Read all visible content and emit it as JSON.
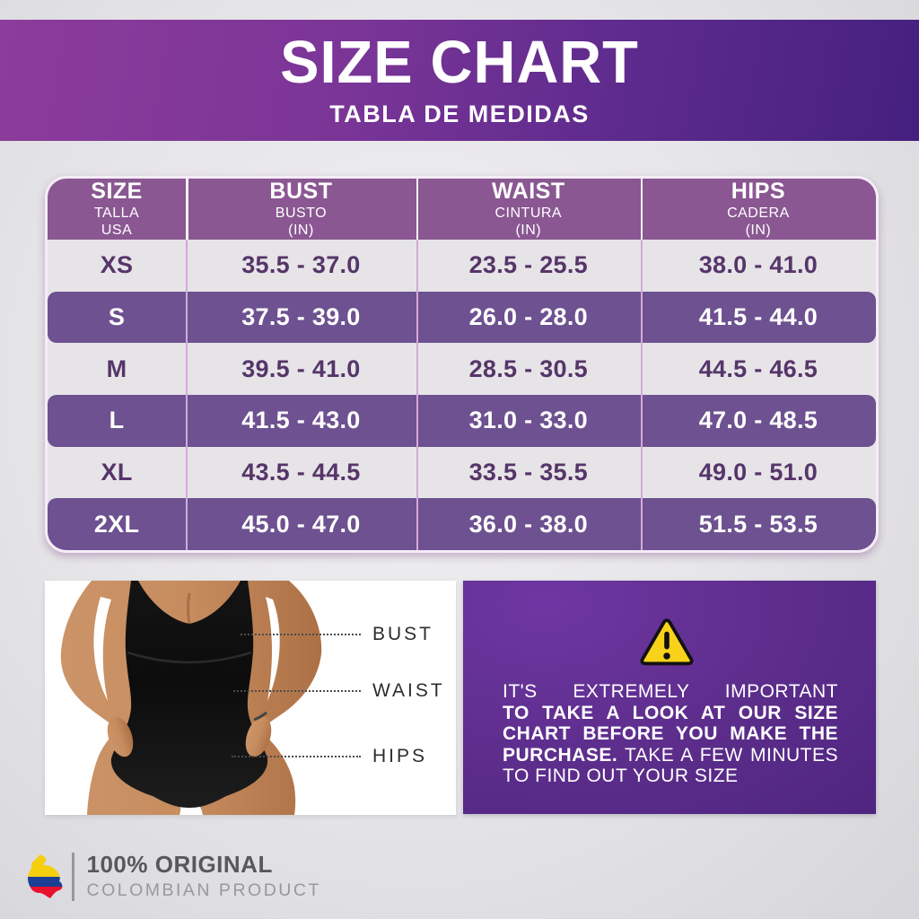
{
  "header": {
    "title": "SIZE CHART",
    "subtitle": "TABLA DE MEDIDAS"
  },
  "chart_data": {
    "type": "table",
    "title": "SIZE CHART",
    "subtitle": "TABLA DE MEDIDAS",
    "columns": [
      {
        "line1": "SIZE",
        "line2": "TALLA",
        "line3": "USA"
      },
      {
        "line1": "BUST",
        "line2": "BUSTO",
        "line3": "(IN)"
      },
      {
        "line1": "WAIST",
        "line2": "CINTURA",
        "line3": "(IN)"
      },
      {
        "line1": "HIPS",
        "line2": "CADERA",
        "line3": "(IN)"
      }
    ],
    "rows": [
      [
        "XS",
        "35.5 - 37.0",
        "23.5 - 25.5",
        "38.0 - 41.0"
      ],
      [
        "S",
        "37.5 - 39.0",
        "26.0 - 28.0",
        "41.5 - 44.0"
      ],
      [
        "M",
        "39.5 - 41.0",
        "28.5 - 30.5",
        "44.5 - 46.5"
      ],
      [
        "L",
        "41.5 - 43.0",
        "31.0 - 33.0",
        "47.0 - 48.5"
      ],
      [
        "XL",
        "43.5 - 44.5",
        "33.5 - 35.5",
        "49.0 - 51.0"
      ],
      [
        "2XL",
        "45.0 - 47.0",
        "36.0 - 38.0",
        "51.5 - 53.5"
      ]
    ]
  },
  "measurement_diagram": {
    "labels": [
      "BUST",
      "WAIST",
      "HIPS"
    ]
  },
  "info_box": {
    "icon": "warning-triangle-icon",
    "line1": "IT'S EXTREMELY IMPORTANT",
    "line2": "TO TAKE A LOOK AT OUR SIZE",
    "line3": "CHART BEFORE YOU MAKE THE",
    "line4_bold": "PURCHASE.",
    "line4_rest": " TAKE A FEW MINUTES",
    "line5": "TO FIND OUT YOUR SIZE"
  },
  "footer": {
    "icon": "colombia-map-icon",
    "line1": "100% ORIGINAL",
    "line2": "COLOMBIAN PRODUCT"
  },
  "colors": {
    "header_gradient_left": "#8c3c9b",
    "header_gradient_right": "#45207f",
    "table_header": "#8a5792",
    "row_purple": "#6d5190",
    "row_gray": "#e6e4e7",
    "row_text_dark": "#56356a",
    "info_box_purple": "#5c2d8b",
    "warning_yellow": "#f8d21a",
    "flag_yellow": "#f5cf0e",
    "flag_blue": "#1c3e94",
    "flag_red": "#e8112d"
  }
}
